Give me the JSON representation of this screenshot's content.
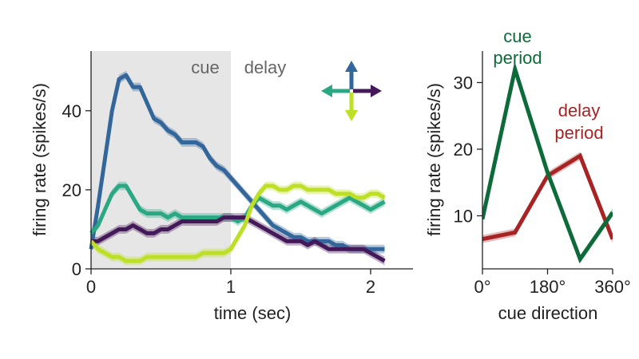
{
  "chart_data": [
    {
      "type": "line",
      "xlabel": "time (sec)",
      "ylabel": "firing rate (spikes/s)",
      "xlim": [
        0,
        2.3
      ],
      "ylim": [
        0,
        55
      ],
      "x_ticks": [
        "0",
        "1",
        "2"
      ],
      "y_ticks": [
        "0",
        "20",
        "40"
      ],
      "shaded_region": {
        "label": "cue",
        "x_range": [
          0,
          1
        ]
      },
      "annotations": [
        "cue",
        "delay"
      ],
      "legend": {
        "type": "direction-arrows",
        "placement": "top-right",
        "items": [
          {
            "direction": "up",
            "color": "#33669a"
          },
          {
            "direction": "left",
            "color": "#2aa884"
          },
          {
            "direction": "right",
            "color": "#44195a"
          },
          {
            "direction": "down",
            "color": "#bddf26"
          }
        ]
      },
      "x": [
        0,
        0.05,
        0.1,
        0.15,
        0.2,
        0.25,
        0.3,
        0.35,
        0.4,
        0.45,
        0.5,
        0.55,
        0.6,
        0.65,
        0.7,
        0.75,
        0.8,
        0.85,
        0.9,
        0.95,
        1.0,
        1.05,
        1.1,
        1.15,
        1.2,
        1.25,
        1.3,
        1.35,
        1.4,
        1.45,
        1.5,
        1.55,
        1.6,
        1.65,
        1.7,
        1.75,
        1.8,
        1.85,
        1.9,
        1.95,
        2.0,
        2.05,
        2.1
      ],
      "series": [
        {
          "color": "#33669a",
          "values": [
            5,
            16,
            28,
            40,
            48,
            49,
            46,
            46,
            42,
            38,
            37,
            35,
            34,
            32,
            32,
            32,
            31,
            28,
            26,
            25,
            23,
            21,
            19,
            17,
            15,
            13,
            11,
            10,
            9,
            8,
            8,
            7,
            7,
            7,
            7,
            6,
            6,
            5,
            5,
            5,
            5,
            5,
            5
          ]
        },
        {
          "color": "#2aa884",
          "values": [
            9,
            11,
            15,
            19,
            21,
            21,
            18,
            15,
            14,
            14,
            14,
            13,
            14,
            13,
            13,
            13,
            13,
            13,
            13,
            13,
            13,
            12,
            13,
            16,
            18,
            17,
            16,
            16,
            15,
            16,
            17,
            16,
            15,
            14,
            15,
            16,
            17,
            18,
            17,
            16,
            15,
            16,
            17
          ]
        },
        {
          "color": "#44195a",
          "values": [
            7,
            7,
            8,
            9,
            10,
            10,
            11,
            10,
            9,
            9,
            10,
            10,
            11,
            12,
            12,
            12,
            12,
            12,
            12,
            13,
            13,
            13,
            13,
            12,
            11,
            10,
            9,
            8,
            7,
            7,
            7,
            6,
            7,
            6,
            5,
            5,
            5,
            5,
            5,
            5,
            4,
            3,
            2
          ]
        },
        {
          "color": "#bddf26",
          "values": [
            7,
            5,
            4,
            3,
            3,
            2,
            2,
            2,
            3,
            3,
            3,
            3,
            3,
            3,
            3,
            3,
            4,
            4,
            4,
            4,
            5,
            8,
            11,
            16,
            19,
            21,
            21,
            20,
            20,
            21,
            21,
            20,
            20,
            20,
            20,
            19,
            19,
            19,
            18,
            18,
            19,
            19,
            18
          ]
        }
      ]
    },
    {
      "type": "line",
      "xlabel": "cue direction",
      "ylabel": "firing rate (spikes/s)",
      "xlim": [
        0,
        360
      ],
      "ylim": [
        1.5,
        34.5
      ],
      "x_ticks": [
        "0°",
        "180°",
        "360°"
      ],
      "y_ticks": [
        "10",
        "20",
        "30"
      ],
      "annotations": [
        {
          "text": [
            "cue",
            "period"
          ],
          "color": "#0d6b3a"
        },
        {
          "text": [
            "delay",
            "period"
          ],
          "color": "#a82323"
        }
      ],
      "x": [
        0,
        90,
        180,
        270,
        360
      ],
      "series": [
        {
          "color": "#0d6b3a",
          "values": [
            9.5,
            32,
            16.5,
            3.5,
            10.5
          ]
        },
        {
          "color": "#a82323",
          "values": [
            6.5,
            7.5,
            16,
            19,
            6.5
          ]
        }
      ]
    }
  ]
}
